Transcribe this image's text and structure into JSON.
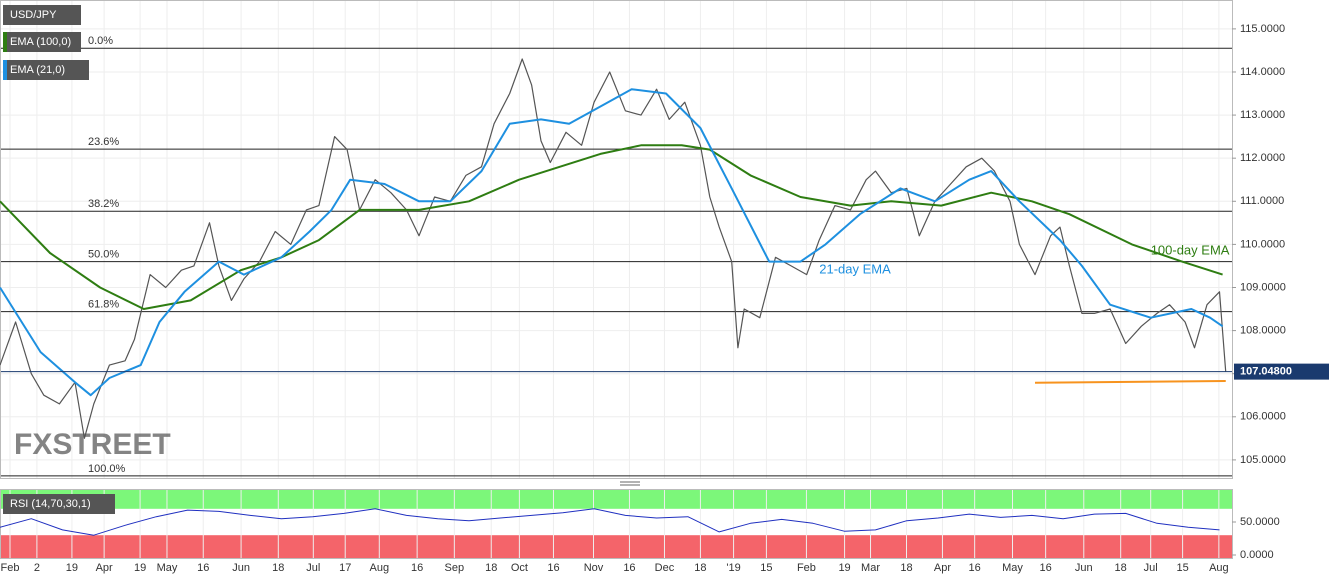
{
  "chart_data": [
    {
      "type": "line",
      "title": "USD/JPY",
      "watermark": "FXSTREET",
      "xlim": [
        0,
        394
      ],
      "ylim": [
        104.58,
        115.67
      ],
      "grid": true,
      "xticks": [
        {
          "value": 3.2,
          "label": "Feb"
        },
        {
          "value": 11.8,
          "label": "2"
        },
        {
          "value": 23,
          "label": "19"
        },
        {
          "value": 33.3,
          "label": "Apr"
        },
        {
          "value": 44.8,
          "label": "19"
        },
        {
          "value": 53.4,
          "label": "May"
        },
        {
          "value": 65,
          "label": "16"
        },
        {
          "value": 77.1,
          "label": "Jun"
        },
        {
          "value": 89,
          "label": "18"
        },
        {
          "value": 100.2,
          "label": "Jul"
        },
        {
          "value": 110.4,
          "label": "17"
        },
        {
          "value": 121.3,
          "label": "Aug"
        },
        {
          "value": 133.4,
          "label": "16"
        },
        {
          "value": 145.3,
          "label": "Sep"
        },
        {
          "value": 157.1,
          "label": "18"
        },
        {
          "value": 166.1,
          "label": "Oct"
        },
        {
          "value": 177,
          "label": "16"
        },
        {
          "value": 189.8,
          "label": "Nov"
        },
        {
          "value": 201.3,
          "label": "16"
        },
        {
          "value": 212.5,
          "label": "Dec"
        },
        {
          "value": 224,
          "label": "18"
        },
        {
          "value": 234.6,
          "label": "'19"
        },
        {
          "value": 245.1,
          "label": "15"
        },
        {
          "value": 257.9,
          "label": "Feb"
        },
        {
          "value": 270.1,
          "label": "19"
        },
        {
          "value": 278.4,
          "label": "Mar"
        },
        {
          "value": 289.9,
          "label": "18"
        },
        {
          "value": 301.4,
          "label": "Apr"
        },
        {
          "value": 311.7,
          "label": "16"
        },
        {
          "value": 323.8,
          "label": "May"
        },
        {
          "value": 334.4,
          "label": "16"
        },
        {
          "value": 346.6,
          "label": "Jun"
        },
        {
          "value": 358.4,
          "label": "18"
        },
        {
          "value": 368,
          "label": "Jul"
        },
        {
          "value": 378.2,
          "label": "15"
        },
        {
          "value": 389.8,
          "label": "Aug"
        }
      ],
      "yticks": [
        {
          "value": 105,
          "label": "105.0000"
        },
        {
          "value": 106,
          "label": "106.0000"
        },
        {
          "value": 107,
          "label": "107.0000"
        },
        {
          "value": 108,
          "label": "108.0000"
        },
        {
          "value": 109,
          "label": "109.0000"
        },
        {
          "value": 110,
          "label": "110.0000"
        },
        {
          "value": 111,
          "label": "111.0000"
        },
        {
          "value": 112,
          "label": "112.0000"
        },
        {
          "value": 113,
          "label": "113.0000"
        },
        {
          "value": 114,
          "label": "114.0000"
        },
        {
          "value": 115,
          "label": "115.0000"
        }
      ],
      "series": [
        {
          "name": "USD/JPY",
          "color": "#555555",
          "x": [
            0,
            5,
            10,
            14,
            19,
            24,
            27,
            30,
            35,
            40,
            43,
            48,
            53,
            58,
            62,
            67,
            70,
            74,
            78,
            83,
            88,
            93,
            98,
            102,
            107,
            111,
            115,
            120,
            125,
            130,
            134,
            139,
            144,
            149,
            154,
            158,
            163,
            167,
            170,
            173,
            176,
            181,
            186,
            190,
            195,
            200,
            205,
            210,
            214,
            219,
            224,
            227,
            230,
            234,
            236,
            238,
            243,
            248,
            253,
            258,
            262,
            267,
            272,
            277,
            280,
            285,
            290,
            294,
            299,
            304,
            309,
            314,
            318,
            323,
            326,
            331,
            336,
            339,
            342,
            346,
            350,
            355,
            360,
            365,
            370,
            374,
            379,
            382,
            386,
            390,
            392
          ],
          "values": [
            107.2,
            108.2,
            107.0,
            106.5,
            106.3,
            106.8,
            105.5,
            106.3,
            107.2,
            107.3,
            107.8,
            109.3,
            109.0,
            109.4,
            109.5,
            110.5,
            109.5,
            108.7,
            109.2,
            109.6,
            110.3,
            110.0,
            110.8,
            110.9,
            112.5,
            112.2,
            110.8,
            111.5,
            111.2,
            110.8,
            110.2,
            111.1,
            111.0,
            111.6,
            111.8,
            112.8,
            113.5,
            114.3,
            113.7,
            112.4,
            111.9,
            112.6,
            112.3,
            113.3,
            114.0,
            113.1,
            113.0,
            113.6,
            112.9,
            113.3,
            112.3,
            111.1,
            110.4,
            109.6,
            107.6,
            108.5,
            108.3,
            109.7,
            109.5,
            109.3,
            110.1,
            110.9,
            110.8,
            111.5,
            111.7,
            111.2,
            111.3,
            110.2,
            111.0,
            111.4,
            111.8,
            112.0,
            111.7,
            111.0,
            110.0,
            109.3,
            110.2,
            110.4,
            109.5,
            108.4,
            108.4,
            108.5,
            107.7,
            108.1,
            108.4,
            108.6,
            108.2,
            107.6,
            108.6,
            108.9,
            107.05
          ]
        },
        {
          "name": "EMA (100,0)",
          "color": "#2e7d12",
          "x": [
            0,
            16,
            32,
            46,
            61,
            77,
            90,
            102,
            115,
            134,
            150,
            166,
            179,
            192,
            205,
            218,
            227,
            240,
            256,
            272,
            285,
            301,
            317,
            330,
            342,
            362,
            378,
            391
          ],
          "values": [
            111.0,
            109.8,
            109.0,
            108.5,
            108.7,
            109.4,
            109.7,
            110.1,
            110.8,
            110.8,
            111.0,
            111.5,
            111.8,
            112.1,
            112.3,
            112.3,
            112.2,
            111.6,
            111.1,
            110.9,
            111.0,
            110.9,
            111.2,
            111.0,
            110.7,
            110.0,
            109.6,
            109.3
          ]
        },
        {
          "name": "EMA (21,0)",
          "color": "#1e90e0",
          "x": [
            0,
            13,
            24,
            29,
            35,
            45,
            51,
            59,
            70,
            78,
            90,
            99,
            106,
            112,
            123,
            134,
            144,
            154,
            163,
            173,
            182,
            192,
            202,
            213,
            224,
            234,
            246,
            256,
            264,
            275,
            288,
            299,
            310,
            317,
            326,
            339,
            346,
            355,
            368,
            381,
            387,
            391
          ],
          "values": [
            109.0,
            107.5,
            106.8,
            106.5,
            106.9,
            107.2,
            108.2,
            108.9,
            109.6,
            109.3,
            109.7,
            110.3,
            110.8,
            111.5,
            111.4,
            111.0,
            111.0,
            111.7,
            112.8,
            112.9,
            112.8,
            113.2,
            113.6,
            113.5,
            112.7,
            111.3,
            109.6,
            109.6,
            110.0,
            110.7,
            111.3,
            111.0,
            111.5,
            111.7,
            111.0,
            110.1,
            109.5,
            108.6,
            108.3,
            108.5,
            108.3,
            108.1
          ]
        }
      ],
      "fib_levels": [
        {
          "label": "0.0%",
          "value": 114.55
        },
        {
          "label": "23.6%",
          "value": 112.21
        },
        {
          "label": "38.2%",
          "value": 110.77
        },
        {
          "label": "50.0%",
          "value": 109.6
        },
        {
          "label": "61.8%",
          "value": 108.44
        },
        {
          "label": "100.0%",
          "value": 104.63
        }
      ],
      "last": {
        "value": 107.048,
        "label": "107.04800"
      },
      "support": {
        "color": "#f7931e",
        "x": [
          331,
          392
        ],
        "values": [
          106.79,
          106.83
        ]
      },
      "annotations": [
        {
          "text": "100-day EMA",
          "color": "#2e7d12",
          "x": 368,
          "y": 109.85
        },
        {
          "text": "21-day EMA",
          "color": "#1e90e0",
          "x": 262,
          "y": 109.4
        }
      ]
    },
    {
      "type": "rsi",
      "title": "RSI (14,70,30,1)",
      "ylim": [
        0,
        100
      ],
      "overbought": 70,
      "oversold": 30,
      "yticks": [
        {
          "value": 50,
          "label": "50.0000"
        },
        {
          "value": 0,
          "label": "0.0000"
        }
      ],
      "series": [
        {
          "name": "RSI",
          "color": "#2030c0",
          "x": [
            0,
            10,
            20,
            30,
            40,
            50,
            60,
            70,
            80,
            90,
            100,
            110,
            120,
            130,
            140,
            150,
            160,
            170,
            180,
            190,
            200,
            210,
            220,
            230,
            240,
            250,
            260,
            270,
            280,
            290,
            300,
            310,
            320,
            330,
            340,
            350,
            360,
            370,
            380,
            390
          ],
          "values": [
            42,
            55,
            38,
            30,
            45,
            58,
            68,
            66,
            60,
            55,
            58,
            63,
            70,
            60,
            55,
            52,
            56,
            60,
            64,
            70,
            60,
            56,
            58,
            35,
            48,
            54,
            48,
            36,
            38,
            52,
            56,
            62,
            57,
            60,
            55,
            62,
            63,
            48,
            42,
            38
          ]
        }
      ]
    }
  ]
}
